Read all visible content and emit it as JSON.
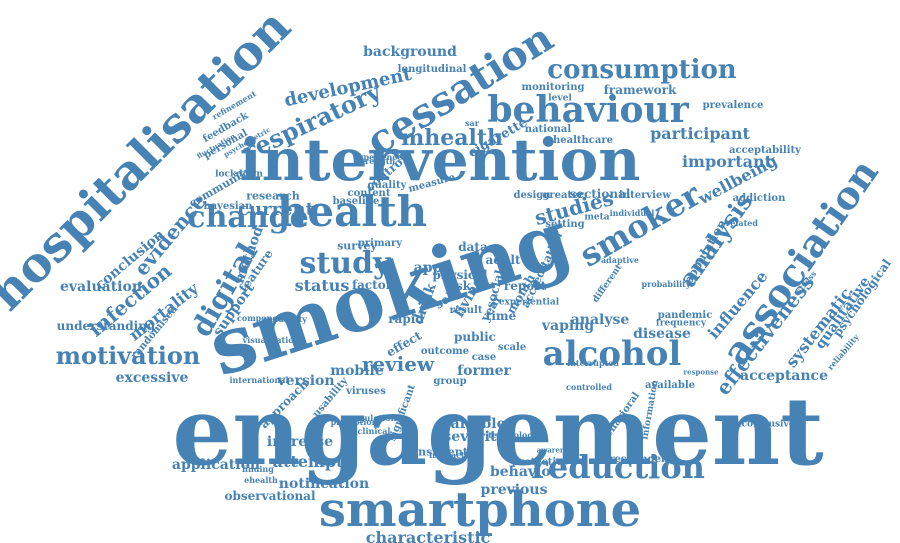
{
  "color": "#4682b4",
  "words": [
    "engagement",
    "smoking",
    "intervention",
    "smartphone",
    "hospitalisation",
    "health",
    "cessation",
    "association",
    "behaviour",
    "alcohol",
    "smoker",
    "reduction",
    "change",
    "study",
    "digital",
    "consumption",
    "motivation",
    "analysis",
    "respiratory",
    "mhealth",
    "studies",
    "effectiveness",
    "infection",
    "evidence",
    "review",
    "current",
    "development",
    "participant",
    "status",
    "mortality",
    "wellbeing",
    "characteristic",
    "attempt",
    "important",
    "systematic",
    "influence",
    "acceptance",
    "background",
    "application",
    "notification",
    "increase",
    "variable",
    "severity",
    "qualitative",
    "psychological",
    "excessive",
    "evaluation",
    "vaping",
    "analyse",
    "disease",
    "former",
    "mobile",
    "version",
    "behavior",
    "previous",
    "conclusion",
    "understanding",
    "method",
    "support",
    "app",
    "observational",
    "cigarette",
    "framework",
    "population",
    "approach",
    "research",
    "survey",
    "factor",
    "adult",
    "data",
    "feature",
    "control",
    "randomised",
    "bayesian",
    "acceptability",
    "addiction",
    "sectional",
    "interview",
    "community",
    "personal",
    "feedback",
    "longitudinal",
    "monitoring",
    "national",
    "healthcare",
    "prevalence",
    "consistent",
    "protective",
    "respondent",
    "available",
    "inconclusive",
    "behavioral",
    "information",
    "primary",
    "greater",
    "setting",
    "design",
    "quality",
    "content",
    "baseline",
    "measure",
    "month",
    "report",
    "time",
    "year",
    "case",
    "scale",
    "public",
    "outcome",
    "group",
    "viruses",
    "finding",
    "ehealth",
    "visualization",
    "international",
    "refinement",
    "fluctuation",
    "psychometric",
    "experiential",
    "accreditation",
    "social",
    "living",
    "physical",
    "risk",
    "self",
    "drink",
    "rapid",
    "effect",
    "result",
    "level",
    "sar",
    "meta",
    "individual",
    "related",
    "adaptive",
    "probability",
    "different",
    "pandemic",
    "frequency",
    "response",
    "controlled",
    "interrupted",
    "promotion",
    "clinical",
    "regulation",
    "component",
    "capability",
    "lockdown",
    "usability",
    "significant",
    "experience",
    "strength",
    "technology",
    "interaction",
    "awareness",
    "reliability",
    "stress",
    "sociodemographic",
    "experimental"
  ]
}
